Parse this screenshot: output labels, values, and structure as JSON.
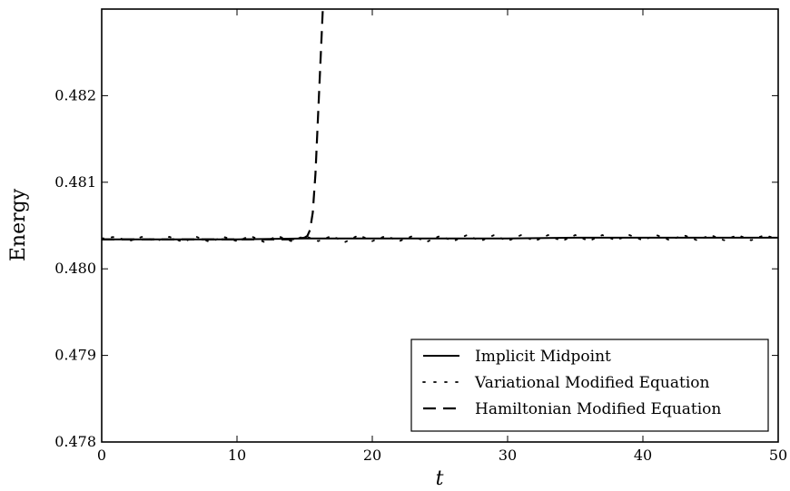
{
  "chart_data": {
    "type": "line",
    "title": "",
    "xlabel": "t",
    "ylabel": "Energy",
    "xlim": [
      0,
      50
    ],
    "ylim": [
      0.478,
      0.483
    ],
    "x_ticks": [
      0,
      10,
      20,
      30,
      40,
      50
    ],
    "x_tick_labels": [
      "0",
      "10",
      "20",
      "30",
      "40",
      "50"
    ],
    "y_ticks": [
      0.478,
      0.479,
      0.48,
      0.481,
      0.482
    ],
    "y_tick_labels": [
      "0.478",
      "0.479",
      "0.480",
      "0.481",
      "0.482"
    ],
    "grid": false,
    "legend_position": "lower-right",
    "series": [
      {
        "name": "Implicit Midpoint",
        "style": "solid",
        "color": "#000000",
        "x": [
          0,
          5,
          10,
          15,
          20,
          25,
          30,
          35,
          40,
          45,
          50
        ],
        "y": [
          0.48034,
          0.48034,
          0.48034,
          0.48035,
          0.48035,
          0.48035,
          0.48035,
          0.48036,
          0.48036,
          0.48036,
          0.48036
        ]
      },
      {
        "name": "Variational Modified Equation",
        "style": "dotted",
        "color": "#000000",
        "x": [
          0,
          1,
          2,
          3,
          4,
          5,
          6,
          7,
          8,
          9,
          10,
          11,
          12,
          13,
          14,
          15,
          16,
          17,
          18,
          19,
          20,
          21,
          22,
          23,
          24,
          25,
          26,
          27,
          28,
          29,
          30,
          31,
          32,
          33,
          34,
          35,
          36,
          37,
          38,
          39,
          40,
          41,
          42,
          43,
          44,
          45,
          46,
          47,
          48,
          49,
          50
        ],
        "y": [
          0.48035,
          0.48037,
          0.48032,
          0.48037,
          0.48032,
          0.48037,
          0.48031,
          0.48037,
          0.48031,
          0.48037,
          0.48032,
          0.48038,
          0.48031,
          0.48038,
          0.48032,
          0.48038,
          0.48032,
          0.48038,
          0.48031,
          0.48039,
          0.48032,
          0.48038,
          0.48032,
          0.48038,
          0.48031,
          0.48038,
          0.48032,
          0.48039,
          0.48032,
          0.48039,
          0.48032,
          0.48039,
          0.48032,
          0.48039,
          0.48032,
          0.48039,
          0.48032,
          0.48039,
          0.48033,
          0.48039,
          0.48033,
          0.48039,
          0.48033,
          0.48039,
          0.48033,
          0.48039,
          0.48033,
          0.48039,
          0.48033,
          0.48039,
          0.48034
        ]
      },
      {
        "name": "Hamiltonian Modified Equation",
        "style": "dashed",
        "color": "#000000",
        "x": [
          0,
          5,
          10,
          13,
          14,
          14.5,
          15,
          15.2,
          15.4,
          15.6,
          15.8,
          16.0,
          16.2,
          16.4,
          16.55
        ],
        "y": [
          0.48034,
          0.48034,
          0.48034,
          0.48034,
          0.48034,
          0.48035,
          0.48036,
          0.48038,
          0.48045,
          0.48065,
          0.4811,
          0.4818,
          0.4825,
          0.4832,
          0.4839
        ]
      }
    ]
  }
}
